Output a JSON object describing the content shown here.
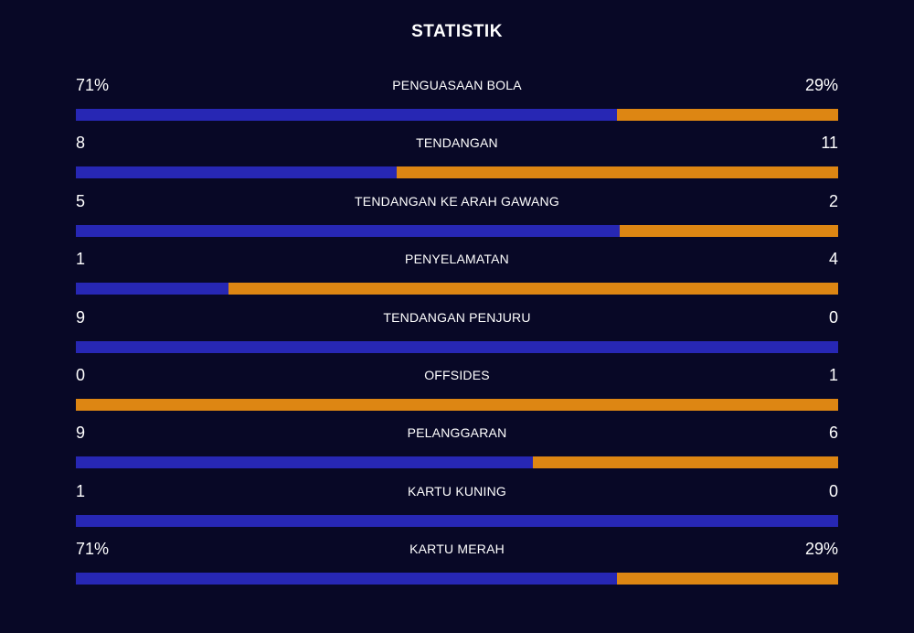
{
  "title": "STATISTIK",
  "colors": {
    "background": "#080826",
    "home": "#2727b4",
    "away": "#dd8613"
  },
  "stats": [
    {
      "label": "PENGUASAAN BOLA",
      "left": "71%",
      "right": "29%",
      "home_share": 0.71
    },
    {
      "label": "TENDANGAN",
      "left": "8",
      "right": "11",
      "home_share": 0.421
    },
    {
      "label": "TENDANGAN KE ARAH GAWANG",
      "left": "5",
      "right": "2",
      "home_share": 0.714
    },
    {
      "label": "PENYELAMATAN",
      "left": "1",
      "right": "4",
      "home_share": 0.2
    },
    {
      "label": "TENDANGAN PENJURU",
      "left": "9",
      "right": "0",
      "home_share": 1.0
    },
    {
      "label": "OFFSIDES",
      "left": "0",
      "right": "1",
      "home_share": 0.0
    },
    {
      "label": "PELANGGARAN",
      "left": "9",
      "right": "6",
      "home_share": 0.6
    },
    {
      "label": "KARTU KUNING",
      "left": "1",
      "right": "0",
      "home_share": 1.0
    },
    {
      "label": "KARTU MERAH",
      "left": "71%",
      "right": "29%",
      "home_share": 0.71
    }
  ]
}
